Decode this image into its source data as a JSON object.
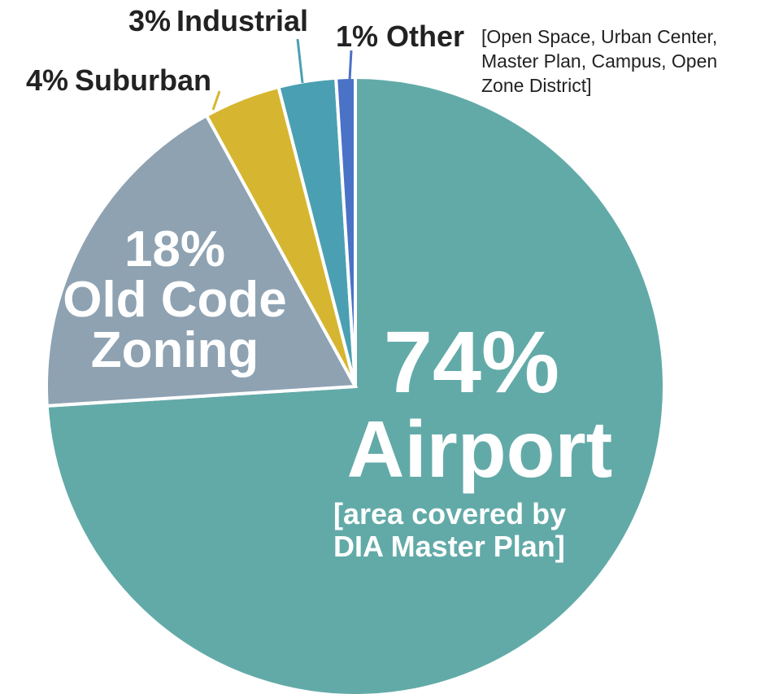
{
  "chart_data": {
    "type": "pie",
    "categories": [
      "Airport",
      "Old Code Zoning",
      "Suburban",
      "Industrial",
      "Other"
    ],
    "values": [
      74,
      18,
      4,
      3,
      1
    ],
    "value_labels": [
      "74%",
      "18%",
      "4%",
      "3%",
      "1%"
    ],
    "category_notes": [
      "[area covered by DIA Master Plan]",
      null,
      null,
      null,
      "[Open Space, Urban Center, Master Plan, Campus, Open Zone District]"
    ],
    "colors": [
      "#62aaa8",
      "#8ea2b2",
      "#d6b630",
      "#4aa0b2",
      "#4a72c6"
    ]
  }
}
